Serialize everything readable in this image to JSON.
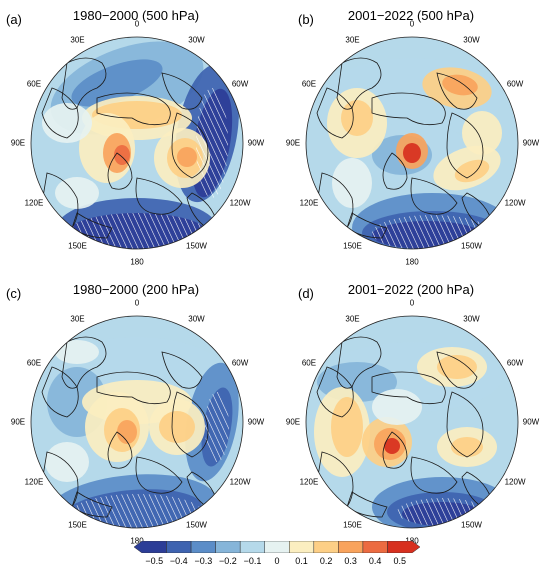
{
  "panels": [
    {
      "id": "a",
      "label": "(a)",
      "title": "1980−2000 (500 hPa)"
    },
    {
      "id": "b",
      "label": "(b)",
      "title": "2001−2022 (500 hPa)"
    },
    {
      "id": "c",
      "label": "(c)",
      "title": "1980−2000 (200 hPa)"
    },
    {
      "id": "d",
      "label": "(d)",
      "title": "2001−2022 (200 hPa)"
    }
  ],
  "longitude_labels": [
    "0",
    "30W",
    "60W",
    "90W",
    "120W",
    "150W",
    "180",
    "150E",
    "120E",
    "90E",
    "60E",
    "30E"
  ],
  "colorbar": {
    "ticks": [
      "−0.5",
      "−0.4",
      "−0.3",
      "−0.2",
      "−0.1",
      "0",
      "0.1",
      "0.2",
      "0.3",
      "0.4",
      "0.5"
    ],
    "colors": [
      "#2c3d97",
      "#3e63b0",
      "#5b8dc8",
      "#86b5d9",
      "#b5d9ea",
      "#e6f2f1",
      "#fbeec0",
      "#fdcf86",
      "#f9a35c",
      "#ec6b41",
      "#d7301f"
    ]
  },
  "colors": {
    "background_field": "#b5d9ea",
    "land_outline": "#1a1a1a",
    "hatch": "#ffffff"
  }
}
